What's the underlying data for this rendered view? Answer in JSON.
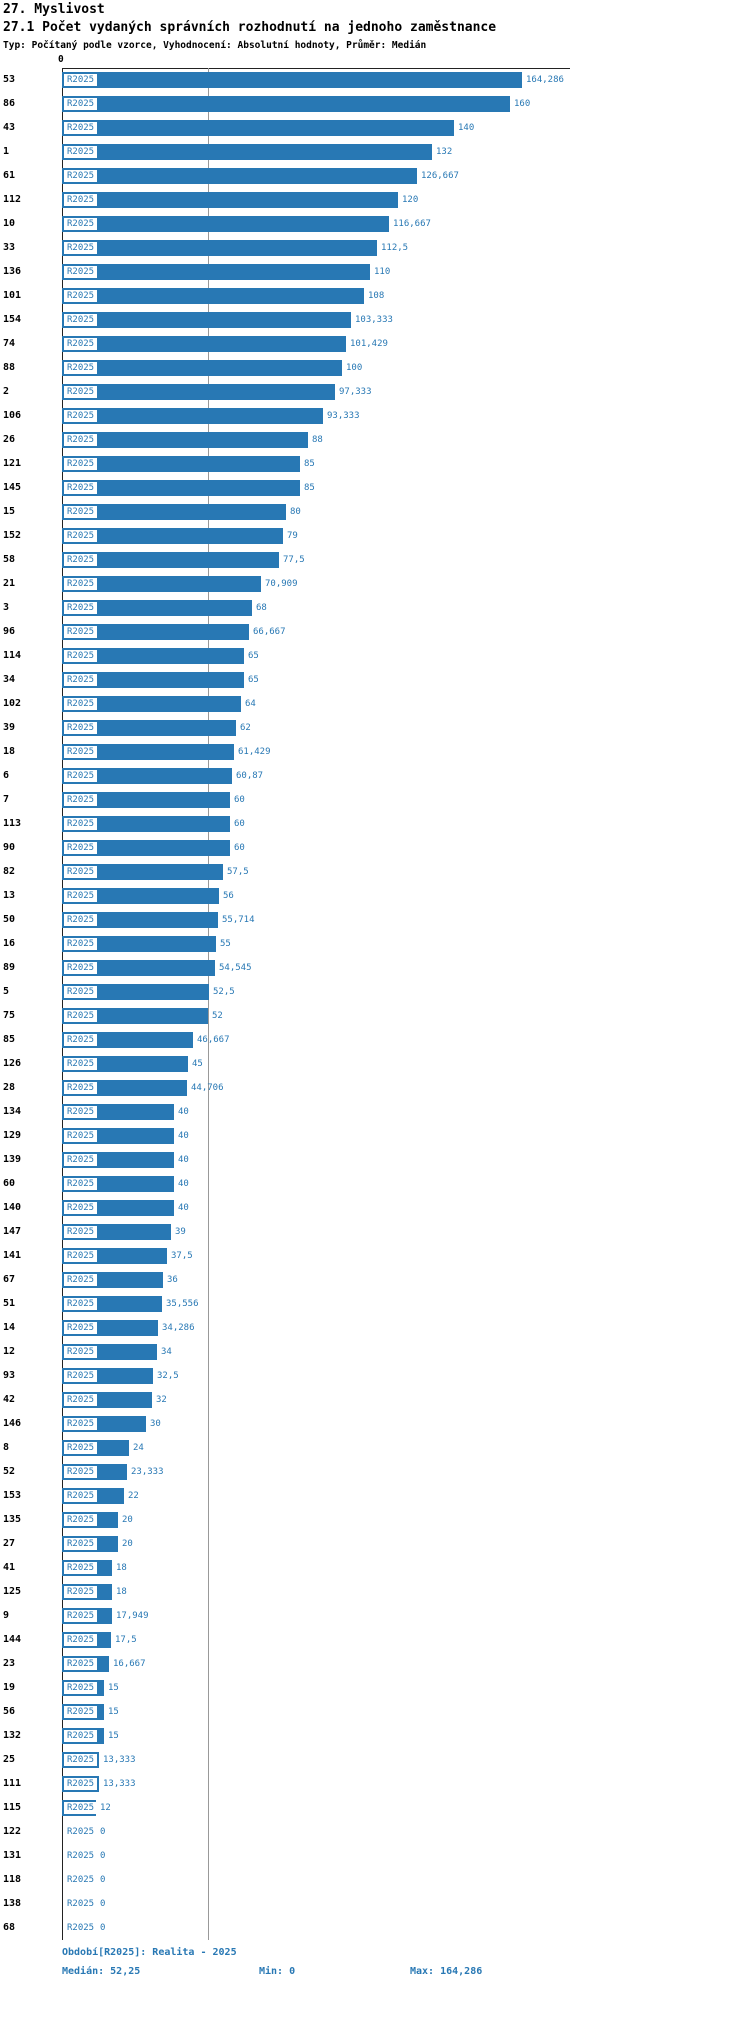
{
  "header": {
    "title": "27. Myslivost",
    "subtitle": "27.1 Počet vydaných správních rozhodnutí na jednoho zaměstnance",
    "meta": "Typ: Počítaný podle vzorce, Vyhodnocení: Absolutní hodnoty, Průměr: Medián"
  },
  "chart_data": {
    "type": "bar",
    "orientation": "horizontal",
    "title": "27.1 Počet vydaných správních rozhodnutí na jednoho zaměstnance",
    "xlabel": "",
    "ylabel": "",
    "xlim": [
      0,
      164.286
    ],
    "axis_zero_label": "0",
    "series_label": "R2025",
    "median_line_value": 52.25,
    "bar_color": "#2878b4",
    "text_color": "#2878b4",
    "grid": false,
    "legend": false,
    "categories": [
      "53",
      "86",
      "43",
      "1",
      "61",
      "112",
      "10",
      "33",
      "136",
      "101",
      "154",
      "74",
      "88",
      "2",
      "106",
      "26",
      "121",
      "145",
      "15",
      "152",
      "58",
      "21",
      "3",
      "96",
      "114",
      "34",
      "102",
      "39",
      "18",
      "6",
      "7",
      "113",
      "90",
      "82",
      "13",
      "50",
      "16",
      "89",
      "5",
      "75",
      "85",
      "126",
      "28",
      "134",
      "129",
      "139",
      "60",
      "140",
      "147",
      "141",
      "67",
      "51",
      "14",
      "12",
      "93",
      "42",
      "146",
      "8",
      "52",
      "153",
      "135",
      "27",
      "41",
      "125",
      "9",
      "144",
      "23",
      "19",
      "56",
      "132",
      "25",
      "111",
      "115",
      "122",
      "131",
      "118",
      "138",
      "68"
    ],
    "values": [
      164.286,
      160,
      140,
      132,
      126.667,
      120,
      116.667,
      112.5,
      110,
      108,
      103.333,
      101.429,
      100,
      97.333,
      93.333,
      88,
      85,
      85,
      80,
      79,
      77.5,
      70.909,
      68,
      66.667,
      65,
      65,
      64,
      62,
      61.429,
      60.87,
      60,
      60,
      60,
      57.5,
      56,
      55.714,
      55,
      54.545,
      52.5,
      52,
      46.667,
      45,
      44.706,
      40,
      40,
      40,
      40,
      40,
      39,
      37.5,
      36,
      35.556,
      34.286,
      34,
      32.5,
      32,
      30,
      24,
      23.333,
      22,
      20,
      20,
      18,
      18,
      17.949,
      17.5,
      16.667,
      15,
      15,
      15,
      13.333,
      13.333,
      12,
      0,
      0,
      0,
      0,
      0
    ],
    "value_labels": [
      "164,286",
      "160",
      "140",
      "132",
      "126,667",
      "120",
      "116,667",
      "112,5",
      "110",
      "108",
      "103,333",
      "101,429",
      "100",
      "97,333",
      "93,333",
      "88",
      "85",
      "85",
      "80",
      "79",
      "77,5",
      "70,909",
      "68",
      "66,667",
      "65",
      "65",
      "64",
      "62",
      "61,429",
      "60,87",
      "60",
      "60",
      "60",
      "57,5",
      "56",
      "55,714",
      "55",
      "54,545",
      "52,5",
      "52",
      "46,667",
      "45",
      "44,706",
      "40",
      "40",
      "40",
      "40",
      "40",
      "39",
      "37,5",
      "36",
      "35,556",
      "34,286",
      "34",
      "32,5",
      "32",
      "30",
      "24",
      "23,333",
      "22",
      "20",
      "20",
      "18",
      "18",
      "17,949",
      "17,5",
      "16,667",
      "15",
      "15",
      "15",
      "13,333",
      "13,333",
      "12",
      "0",
      "0",
      "0",
      "0",
      "0"
    ]
  },
  "footer": {
    "period": "Období[R2025]: Realita - 2025",
    "median": "Medián: 52,25",
    "min": "Min: 0",
    "max": "Max: 164,286"
  }
}
